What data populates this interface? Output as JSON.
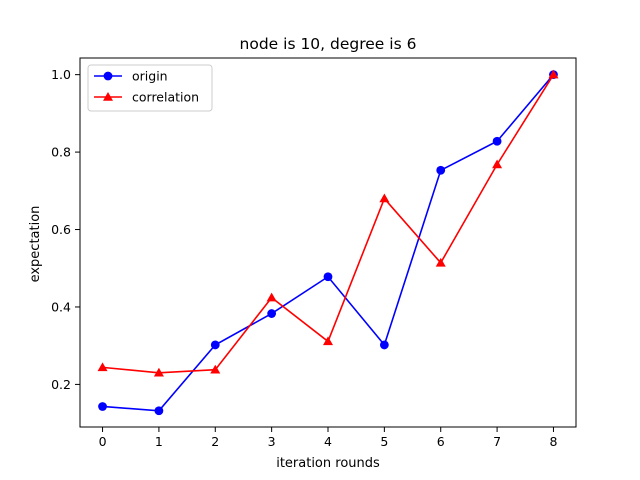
{
  "chart_data": {
    "type": "line",
    "title": "node is 10, degree is 6",
    "xlabel": "iteration rounds",
    "ylabel": "expectation",
    "x": [
      0,
      1,
      2,
      3,
      4,
      5,
      6,
      7,
      8
    ],
    "xlim": [
      -0.4,
      8.4
    ],
    "ylim": [
      0.09,
      1.043
    ],
    "xticks": [
      0,
      1,
      2,
      3,
      4,
      5,
      6,
      7,
      8
    ],
    "yticks": [
      0.2,
      0.4,
      0.6,
      0.8,
      1.0
    ],
    "ytick_labels": [
      "0.2",
      "0.4",
      "0.6",
      "0.8",
      "1.0"
    ],
    "grid": false,
    "legend_position": "top-left",
    "series": [
      {
        "name": "origin",
        "color": "#0000ff",
        "marker": "circle",
        "values": [
          0.143,
          0.132,
          0.302,
          0.383,
          0.478,
          0.302,
          0.753,
          0.828,
          1.0
        ]
      },
      {
        "name": "correlation",
        "color": "#ff0000",
        "marker": "triangle",
        "values": [
          0.244,
          0.23,
          0.238,
          0.424,
          0.311,
          0.68,
          0.514,
          0.768,
          1.0
        ]
      }
    ]
  }
}
